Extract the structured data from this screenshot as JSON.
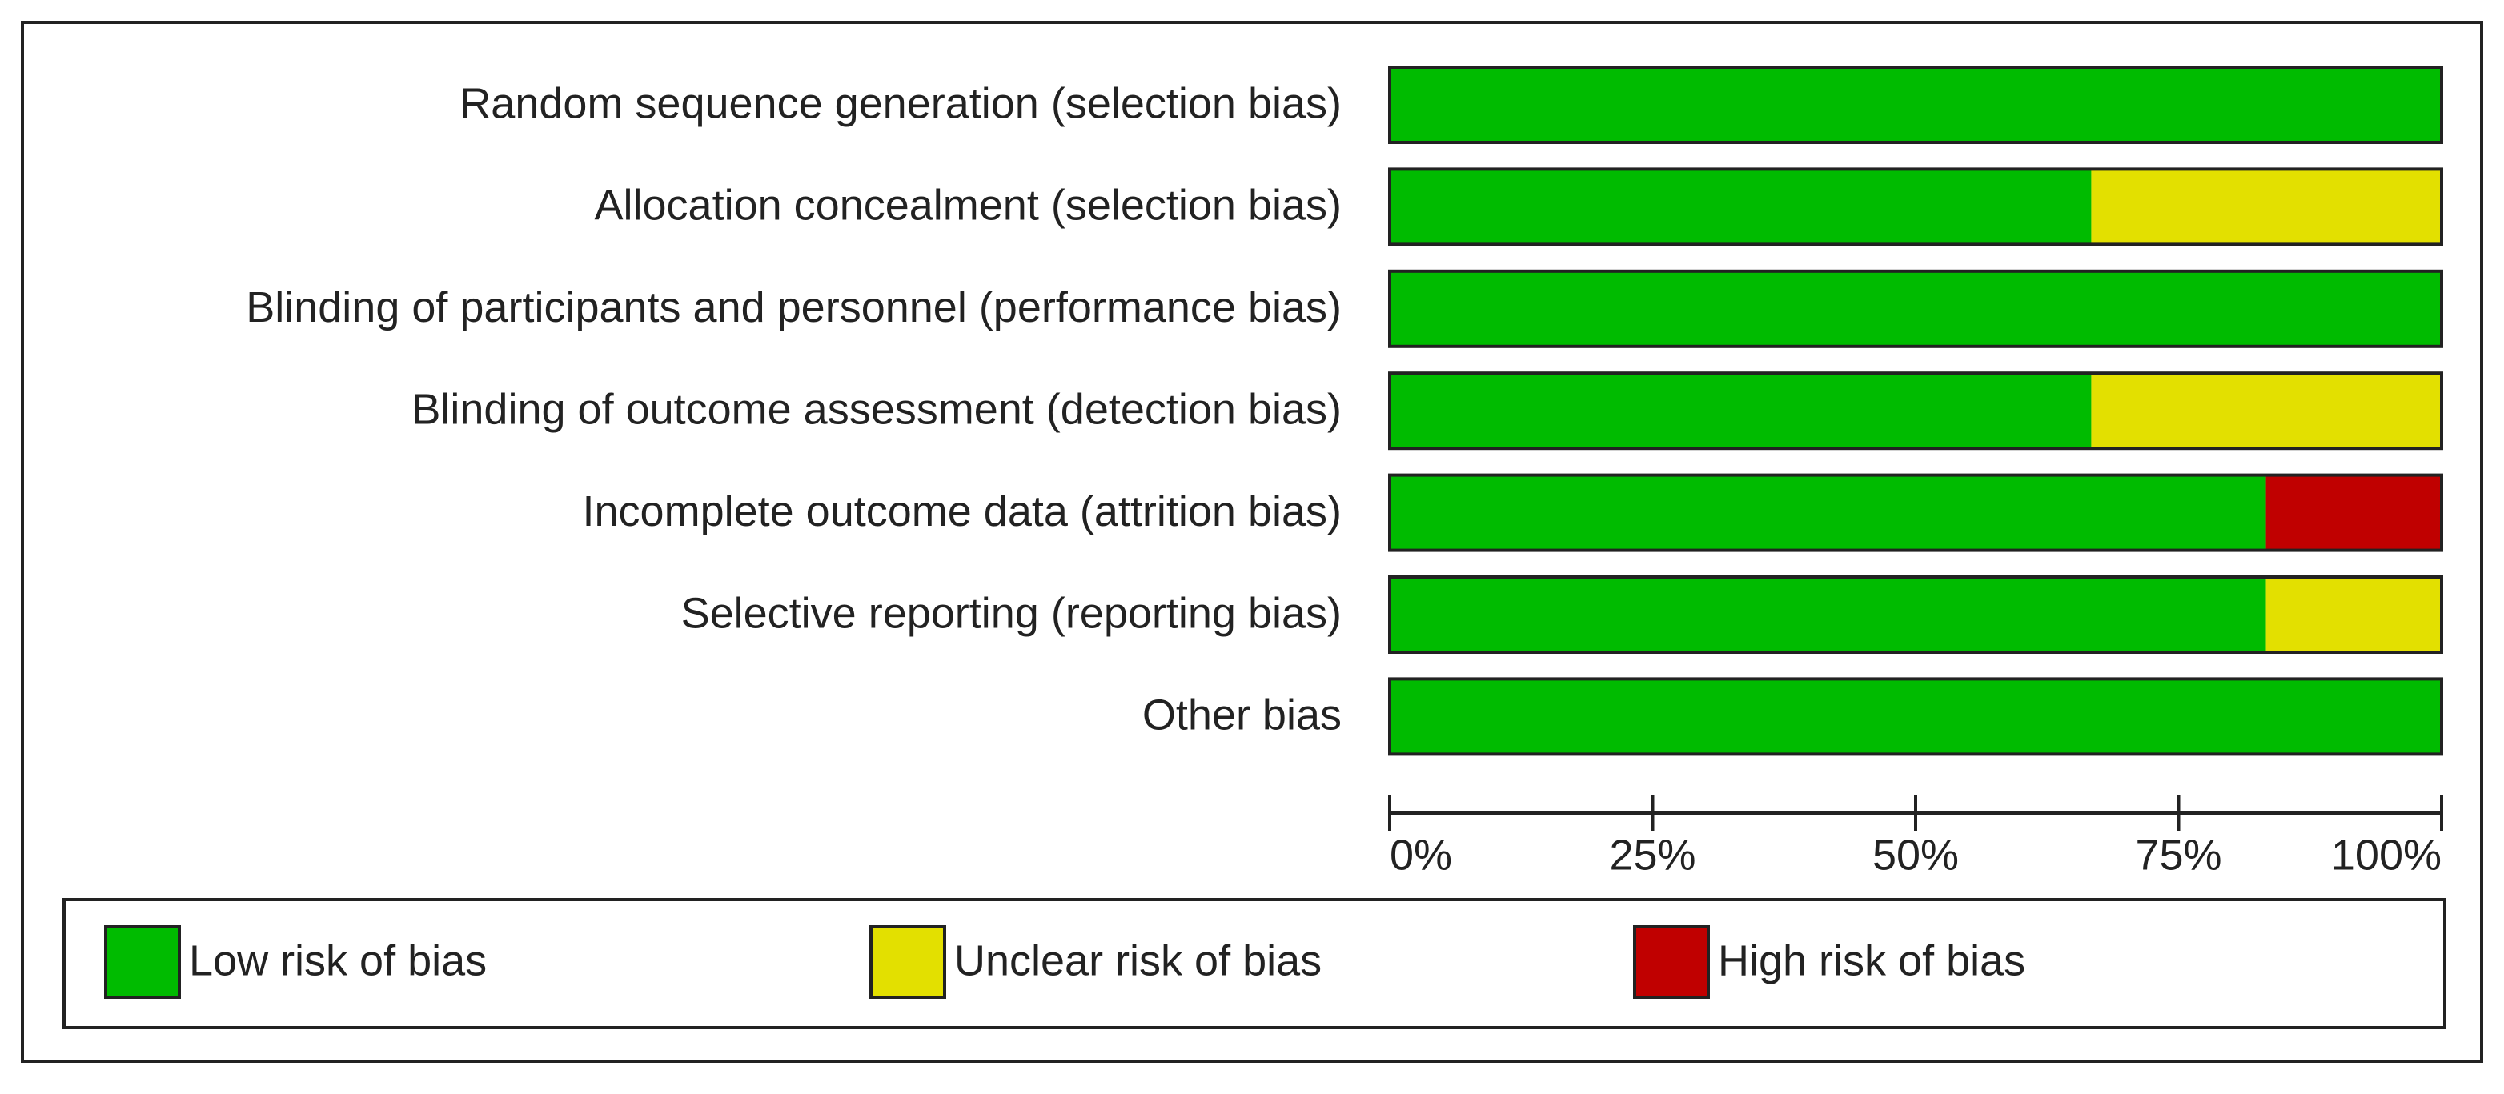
{
  "chart_data": {
    "type": "stacked-barh",
    "categories": [
      "Random sequence generation (selection bias)",
      "Allocation concealment (selection bias)",
      "Blinding of participants and personnel (performance bias)",
      "Blinding of outcome assessment (detection bias)",
      "Incomplete outcome data (attrition bias)",
      "Selective reporting (reporting bias)",
      "Other bias"
    ],
    "series": [
      {
        "name": "Low risk of bias",
        "color": "#00bb00",
        "values": [
          100,
          66.7,
          100,
          66.7,
          83.3,
          83.3,
          100
        ]
      },
      {
        "name": "Unclear risk of bias",
        "color": "#e3e000",
        "values": [
          0,
          33.3,
          0,
          33.3,
          0,
          16.7,
          0
        ]
      },
      {
        "name": "High risk of bias",
        "color": "#c00000",
        "values": [
          0,
          0,
          0,
          0,
          16.7,
          0,
          0
        ]
      }
    ],
    "xlim": [
      0,
      100
    ],
    "xticks": [
      {
        "value": 0,
        "label": "0%"
      },
      {
        "value": 25,
        "label": "25%"
      },
      {
        "value": 50,
        "label": "50%"
      },
      {
        "value": 75,
        "label": "75%"
      },
      {
        "value": 100,
        "label": "100%"
      }
    ],
    "legend": "bottom"
  }
}
